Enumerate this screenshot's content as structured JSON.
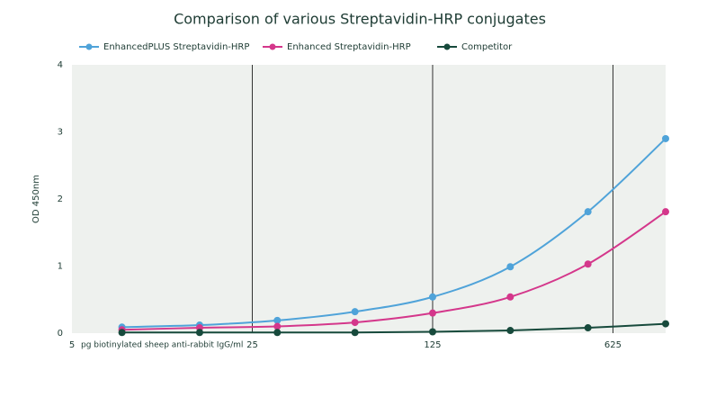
{
  "chart_data": {
    "type": "line",
    "title": "Comparison of various Streptavidin-HRP conjugates",
    "x_label": "pg biotinylated sheep anti-rabbit IgG/ml",
    "y_label": "OD 450nm",
    "x": [
      7.8125,
      15.625,
      31.25,
      62.5,
      125,
      250,
      500,
      1000
    ],
    "x_scale": "log",
    "xlim": [
      5,
      1000
    ],
    "xticks": [
      5,
      25,
      125,
      625
    ],
    "ylim": [
      0,
      4
    ],
    "yticks": [
      0,
      1,
      2,
      3,
      4
    ],
    "grid": "x",
    "legend": "top",
    "series": [
      {
        "name": "EnhancedPLUS Streptavidin-HRP",
        "color": "#4fa3d9",
        "values": [
          0.09,
          0.12,
          0.19,
          0.32,
          0.54,
          0.99,
          1.81,
          2.9
        ]
      },
      {
        "name": "Enhanced Streptavidin-HRP",
        "color": "#d4378b",
        "values": [
          0.05,
          0.08,
          0.1,
          0.16,
          0.3,
          0.54,
          1.03,
          1.81
        ]
      },
      {
        "name": "Competitor",
        "color": "#174a3c",
        "values": [
          0.01,
          0.01,
          0.01,
          0.01,
          0.02,
          0.04,
          0.08,
          0.14
        ]
      }
    ]
  }
}
